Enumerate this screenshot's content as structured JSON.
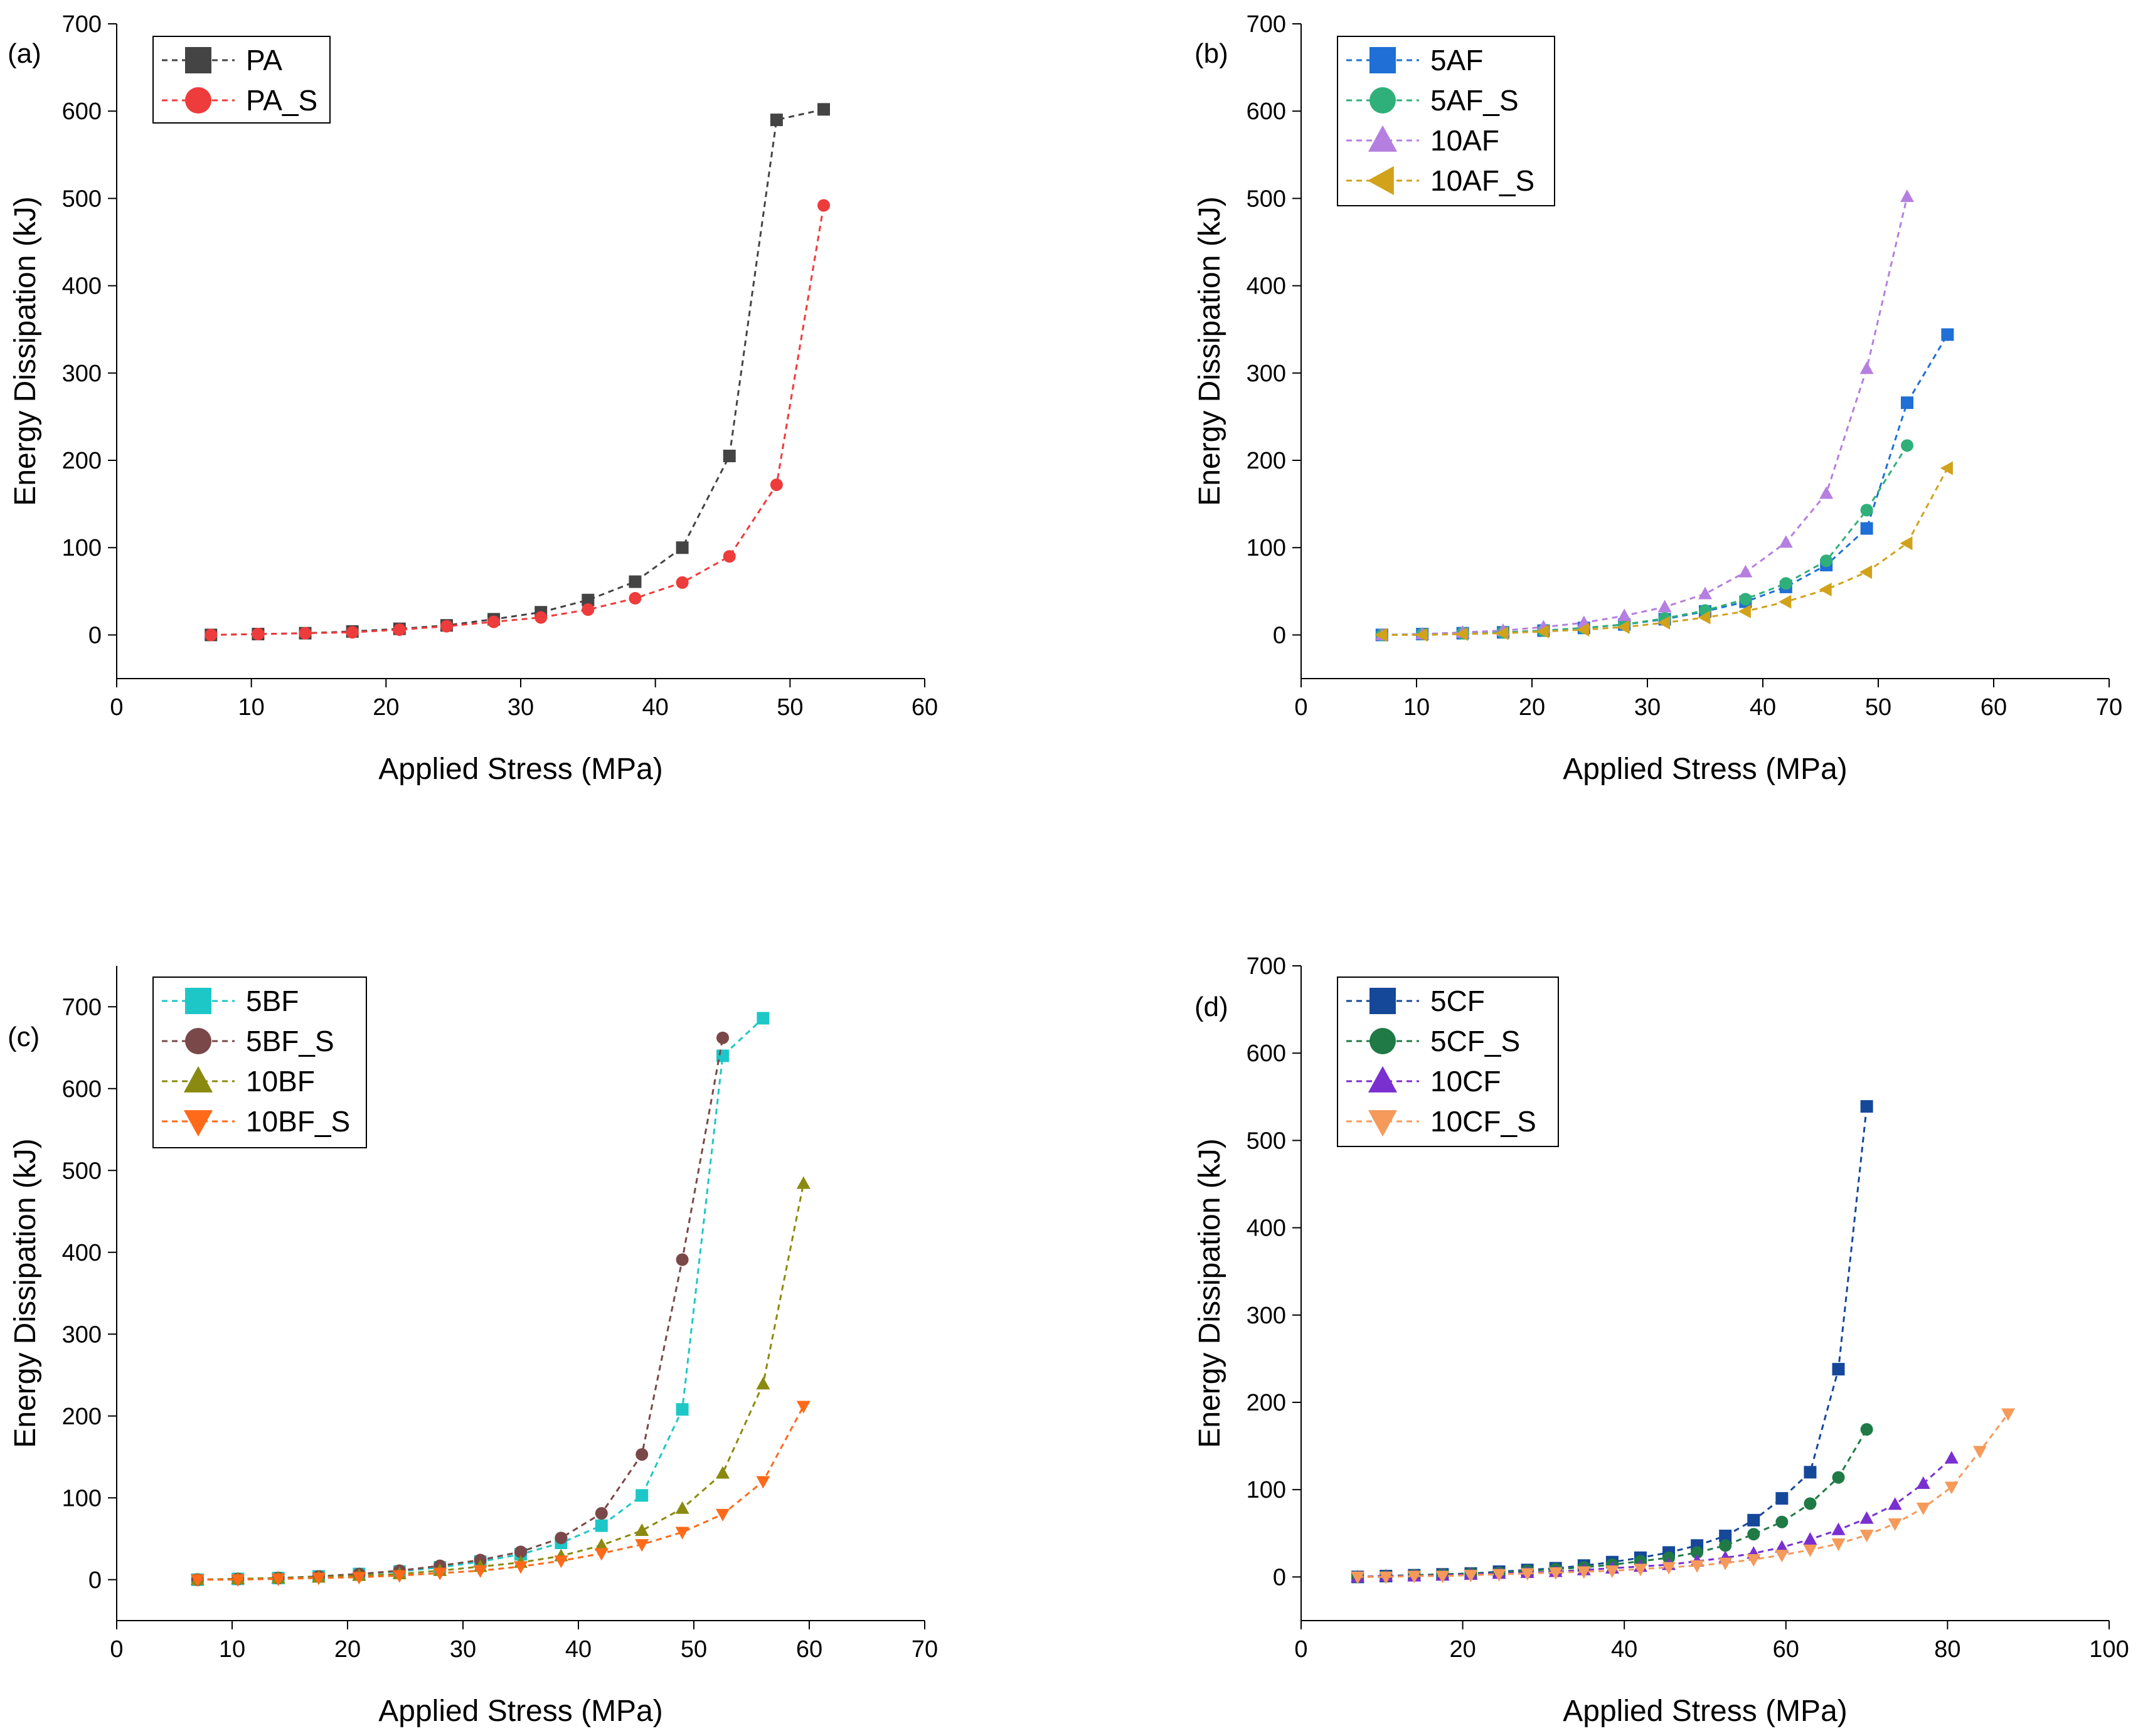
{
  "colors": {
    "PA": "#444444",
    "PA_S": "#ee3b3b",
    "5AF": "#1f6fd6",
    "5AF_S": "#2fb07a",
    "10AF": "#b57fe0",
    "10AF_S": "#d1a21a",
    "5BF": "#1ec7c7",
    "5BF_S": "#7a4848",
    "10BF": "#8a8a10",
    "10BF_S": "#ff6a1a",
    "5CF": "#16489a",
    "5CF_S": "#1f7a45",
    "10CF": "#7a2fd0",
    "10CF_S": "#f59a5a"
  },
  "chart_data": [
    {
      "type": "line",
      "panel_label": "(a)",
      "xlabel": "Applied Stress (MPa)",
      "ylabel": "Energy Dissipation (kJ)",
      "xlim": [
        0,
        60
      ],
      "ylim": [
        -50,
        700
      ],
      "xticks": [
        "0",
        "10",
        "20",
        "30",
        "40",
        "50",
        "60"
      ],
      "yticks": [
        "0",
        "100",
        "200",
        "300",
        "400",
        "500",
        "600",
        "700"
      ],
      "legend_position": "top-left",
      "series": [
        {
          "name": "PA",
          "marker": "square",
          "x": [
            7.0,
            10.5,
            14.0,
            17.5,
            21.0,
            24.5,
            28.0,
            31.5,
            35.0,
            38.5,
            42.0,
            45.5,
            49.0,
            52.5
          ],
          "y": [
            0,
            1,
            2,
            4,
            7,
            11,
            18,
            26,
            40,
            61,
            100,
            205,
            590,
            602
          ]
        },
        {
          "name": "PA_S",
          "marker": "circle",
          "x": [
            7.0,
            10.5,
            14.0,
            17.5,
            21.0,
            24.5,
            28.0,
            31.5,
            35.0,
            38.5,
            42.0,
            45.5,
            49.0,
            52.5
          ],
          "y": [
            0,
            1,
            2,
            3,
            6,
            10,
            15,
            20,
            29,
            42,
            60,
            90,
            172,
            492
          ]
        }
      ]
    },
    {
      "type": "line",
      "panel_label": "(b)",
      "xlabel": "Applied Stress (MPa)",
      "ylabel": "Energy Dissipation (kJ)",
      "xlim": [
        0,
        70
      ],
      "ylim": [
        -50,
        700
      ],
      "xticks": [
        "0",
        "10",
        "20",
        "30",
        "40",
        "50",
        "60",
        "70"
      ],
      "yticks": [
        "0",
        "100",
        "200",
        "300",
        "400",
        "500",
        "600",
        "700"
      ],
      "legend_position": "top-left",
      "series": [
        {
          "name": "5AF",
          "marker": "square",
          "x": [
            7.0,
            10.5,
            14.0,
            17.5,
            21.0,
            24.5,
            28.0,
            31.5,
            35.0,
            38.5,
            42.0,
            45.5,
            49.0,
            52.5,
            56.0
          ],
          "y": [
            0,
            1,
            2,
            3,
            5,
            8,
            12,
            18,
            27,
            38,
            55,
            80,
            122,
            266,
            344
          ]
        },
        {
          "name": "5AF_S",
          "marker": "circle",
          "x": [
            7.0,
            10.5,
            14.0,
            17.5,
            21.0,
            24.5,
            28.0,
            31.5,
            35.0,
            38.5,
            42.0,
            45.5,
            49.0,
            52.5
          ],
          "y": [
            0,
            1,
            2,
            3,
            5,
            8,
            12,
            19,
            28,
            41,
            59,
            85,
            143,
            217
          ]
        },
        {
          "name": "10AF",
          "marker": "triangle-up",
          "x": [
            7.0,
            10.5,
            14.0,
            17.5,
            21.0,
            24.5,
            28.0,
            31.5,
            35.0,
            38.5,
            42.0,
            45.5,
            49.0,
            52.5
          ],
          "y": [
            0,
            1,
            3,
            5,
            9,
            14,
            22,
            32,
            47,
            72,
            106,
            162,
            305,
            502
          ]
        },
        {
          "name": "10AF_S",
          "marker": "triangle-left",
          "x": [
            7.0,
            10.5,
            14.0,
            17.5,
            21.0,
            24.5,
            28.0,
            31.5,
            35.0,
            38.5,
            42.0,
            45.5,
            49.0,
            52.5,
            56.0
          ],
          "y": [
            0,
            0,
            1,
            2,
            4,
            6,
            9,
            14,
            20,
            27,
            38,
            52,
            72,
            105,
            191
          ]
        }
      ]
    },
    {
      "type": "line",
      "panel_label": "(c)",
      "xlabel": "Applied Stress (MPa)",
      "ylabel": "Energy Dissipation (kJ)",
      "xlim": [
        0,
        70
      ],
      "ylim": [
        -50,
        750
      ],
      "xticks": [
        "0",
        "10",
        "20",
        "30",
        "40",
        "50",
        "60",
        "70"
      ],
      "yticks": [
        "0",
        "100",
        "200",
        "300",
        "400",
        "500",
        "600",
        "700"
      ],
      "legend_position": "top-left",
      "series": [
        {
          "name": "5BF",
          "marker": "square",
          "x": [
            7.0,
            10.5,
            14.0,
            17.5,
            21.0,
            24.5,
            28.0,
            31.5,
            35.0,
            38.5,
            42.0,
            45.5,
            49.0,
            52.5,
            56.0
          ],
          "y": [
            0,
            1,
            2,
            4,
            7,
            10,
            15,
            22,
            31,
            45,
            66,
            103,
            208,
            640,
            686
          ]
        },
        {
          "name": "5BF_S",
          "marker": "circle",
          "x": [
            7.0,
            10.5,
            14.0,
            17.5,
            21.0,
            24.5,
            28.0,
            31.5,
            35.0,
            38.5,
            42.0,
            45.5,
            49.0,
            52.5
          ],
          "y": [
            0,
            1,
            2,
            4,
            7,
            11,
            17,
            24,
            34,
            51,
            81,
            153,
            391,
            662
          ]
        },
        {
          "name": "10BF",
          "marker": "triangle-up",
          "x": [
            7.0,
            10.5,
            14.0,
            17.5,
            21.0,
            24.5,
            28.0,
            31.5,
            35.0,
            38.5,
            42.0,
            45.5,
            49.0,
            52.5,
            56.0,
            59.5
          ],
          "y": [
            0,
            1,
            2,
            3,
            5,
            7,
            11,
            16,
            21,
            29,
            42,
            60,
            87,
            130,
            239,
            484
          ]
        },
        {
          "name": "10BF_S",
          "marker": "triangle-down",
          "x": [
            7.0,
            10.5,
            14.0,
            17.5,
            21.0,
            24.5,
            28.0,
            31.5,
            35.0,
            38.5,
            42.0,
            45.5,
            49.0,
            52.5,
            56.0,
            59.5
          ],
          "y": [
            0,
            0,
            1,
            2,
            3,
            5,
            8,
            11,
            16,
            23,
            32,
            43,
            58,
            80,
            120,
            212
          ]
        }
      ]
    },
    {
      "type": "line",
      "panel_label": "(d)",
      "xlabel": "Applied Stress (MPa)",
      "ylabel": "Energy Dissipation (kJ)",
      "xlim": [
        0,
        100
      ],
      "ylim": [
        -50,
        700
      ],
      "xticks": [
        "0",
        "20",
        "40",
        "60",
        "80",
        "100"
      ],
      "yticks": [
        "0",
        "100",
        "200",
        "300",
        "400",
        "500",
        "600",
        "700"
      ],
      "legend_position": "top-left",
      "series": [
        {
          "name": "5CF",
          "marker": "square",
          "x": [
            7.0,
            10.5,
            14.0,
            17.5,
            21.0,
            24.5,
            28.0,
            31.5,
            35.0,
            38.5,
            42.0,
            45.5,
            49.0,
            52.5,
            56.0,
            59.5,
            63.0,
            66.5,
            70.0
          ],
          "y": [
            0,
            1,
            2,
            3,
            4,
            6,
            8,
            10,
            13,
            17,
            22,
            28,
            36,
            47,
            65,
            90,
            120,
            238,
            539
          ]
        },
        {
          "name": "5CF_S",
          "marker": "circle",
          "x": [
            7.0,
            10.5,
            14.0,
            17.5,
            21.0,
            24.5,
            28.0,
            31.5,
            35.0,
            38.5,
            42.0,
            45.5,
            49.0,
            52.5,
            56.0,
            59.5,
            63.0,
            66.5,
            70.0
          ],
          "y": [
            0,
            1,
            2,
            3,
            4,
            5,
            7,
            9,
            11,
            14,
            18,
            22,
            28,
            36,
            49,
            63,
            84,
            114,
            169
          ]
        },
        {
          "name": "10CF",
          "marker": "triangle-up",
          "x": [
            7.0,
            10.5,
            14.0,
            17.5,
            21.0,
            24.5,
            28.0,
            31.5,
            35.0,
            38.5,
            42.0,
            45.5,
            49.0,
            52.5,
            56.0,
            59.5,
            63.0,
            66.5,
            70.0,
            73.5,
            77.0,
            80.5
          ],
          "y": [
            0,
            1,
            1,
            2,
            3,
            4,
            5,
            6,
            8,
            10,
            12,
            14,
            18,
            22,
            27,
            34,
            43,
            54,
            67,
            83,
            107,
            136
          ]
        },
        {
          "name": "10CF_S",
          "marker": "triangle-down",
          "x": [
            7.0,
            10.5,
            14.0,
            17.5,
            21.0,
            24.5,
            28.0,
            31.5,
            35.0,
            38.5,
            42.0,
            45.5,
            49.0,
            52.5,
            56.0,
            59.5,
            63.0,
            66.5,
            70.0,
            73.5,
            77.0,
            80.5,
            84.0,
            87.5
          ],
          "y": [
            0,
            0,
            1,
            1,
            2,
            3,
            4,
            5,
            6,
            7,
            9,
            11,
            13,
            16,
            20,
            25,
            31,
            38,
            48,
            61,
            79,
            103,
            144,
            187
          ]
        }
      ]
    }
  ]
}
